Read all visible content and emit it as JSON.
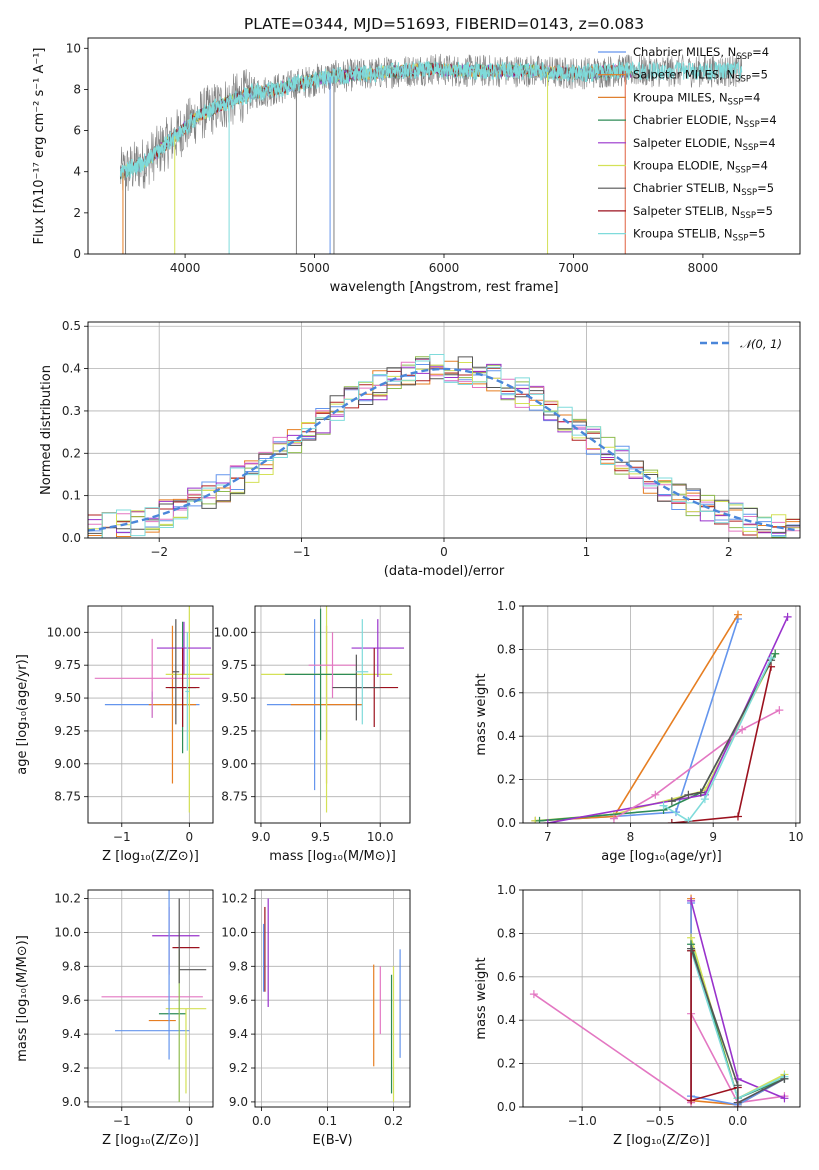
{
  "colors": {
    "c0": "#6495ed",
    "c1": "#e67e22",
    "c2": "#8fbc4f",
    "c3": "#b22222",
    "c4": "#9932cc",
    "c5": "#8c564b",
    "c6": "#e377c2",
    "c7": "#7f7f7f",
    "c8": "#bcbd22",
    "c9": "#17becf",
    "c10": "#2ca02c",
    "c11": "#d4e157",
    "c12": "#555555",
    "c13": "#9b111e",
    "c14": "#7fdbdb",
    "c15": "#ff7f50"
  },
  "chart_data": [
    {
      "type": "line",
      "title": "PLATE=0344, MJD=51693, FIBERID=0143, z=0.083",
      "xlabel": "wavelength [Angstrom, rest frame]",
      "ylabel": "Flux [fλ10⁻¹⁷ erg cm⁻² s⁻¹ A⁻¹]",
      "xlim": [
        3250,
        8750
      ],
      "ylim": [
        0,
        10.5
      ],
      "xticks": [
        4000,
        5000,
        6000,
        7000,
        8000
      ],
      "yticks": [
        0,
        2,
        4,
        6,
        8,
        10
      ],
      "legend_position": "right",
      "series": [
        {
          "name": "Chabrier MILES, N_SSP=4",
          "color": "#6495ed"
        },
        {
          "name": "Salpeter MILES, N_SSP=5",
          "color": "#e67e22"
        },
        {
          "name": "Kroupa MILES, N_SSP=4",
          "color": "#e08030"
        },
        {
          "name": "Chabrier ELODIE, N_SSP=4",
          "color": "#2e8b57"
        },
        {
          "name": "Salpeter ELODIE, N_SSP=4",
          "color": "#9932cc"
        },
        {
          "name": "Kroupa ELODIE, N_SSP=4",
          "color": "#d4e157"
        },
        {
          "name": "Chabrier STELIB, N_SSP=5",
          "color": "#555555"
        },
        {
          "name": "Salpeter STELIB, N_SSP=5",
          "color": "#9b111e"
        },
        {
          "name": "Kroupa STELIB, N_SSP=5",
          "color": "#7fdbdb"
        }
      ],
      "legend_labels": [
        {
          "pre": "Chabrier MILES, N",
          "sub": "SSP",
          "post": "=4"
        },
        {
          "pre": "Salpeter MILES, N",
          "sub": "SSP",
          "post": "=5"
        },
        {
          "pre": "Kroupa MILES, N",
          "sub": "SSP",
          "post": "=4"
        },
        {
          "pre": "Chabrier ELODIE, N",
          "sub": "SSP",
          "post": "=4"
        },
        {
          "pre": "Salpeter ELODIE, N",
          "sub": "SSP",
          "post": "=4"
        },
        {
          "pre": "Kroupa ELODIE, N",
          "sub": "SSP",
          "post": "=4"
        },
        {
          "pre": "Chabrier STELIB, N",
          "sub": "SSP",
          "post": "=5"
        },
        {
          "pre": "Salpeter STELIB, N",
          "sub": "SSP",
          "post": "=5"
        },
        {
          "pre": "Kroupa STELIB, N",
          "sub": "SSP",
          "post": "=5"
        }
      ],
      "continuum": {
        "x": [
          3500,
          3700,
          3900,
          4100,
          4300,
          4500,
          4700,
          4900,
          5100,
          5300,
          5500,
          5700,
          5900,
          6100,
          6300,
          6500,
          6700,
          6900,
          7100,
          7300,
          7500
        ],
        "y": [
          3.9,
          4.5,
          5.6,
          6.7,
          7.3,
          7.8,
          8.0,
          8.3,
          8.6,
          8.7,
          8.8,
          8.9,
          9.0,
          8.9,
          8.9,
          8.9,
          8.9,
          8.8,
          8.8,
          8.9,
          8.9
        ]
      },
      "data_xrange": [
        3500,
        8300
      ],
      "vertical_drops": [
        3520,
        3540,
        3920,
        4340,
        4860,
        5120,
        5150,
        6800,
        7400
      ]
    },
    {
      "type": "line",
      "xlabel": "(data-model)/error",
      "ylabel": "Normed distribution",
      "xlim": [
        -2.5,
        2.5
      ],
      "ylim": [
        0,
        0.51
      ],
      "xticks": [
        -2,
        -1,
        0,
        1,
        2
      ],
      "yticks": [
        0.0,
        0.1,
        0.2,
        0.3,
        0.4,
        0.5
      ],
      "legend_label": "𝒩(0, 1)",
      "legend_position": "top-right",
      "grid": true
    },
    {
      "type": "scatter",
      "xlabel": "Z [log₁₀(Z/Z⊙)]",
      "ylabel": "age  [log₁₀(age/yr)]",
      "xlim": [
        -1.5,
        0.35
      ],
      "ylim": [
        8.55,
        10.2
      ],
      "xticks": [
        -1,
        0
      ],
      "yticks": [
        8.75,
        9.0,
        9.25,
        9.5,
        9.75,
        10.0
      ],
      "points": [
        {
          "x": -0.55,
          "y": 9.45,
          "xerr": 0.7,
          "yerr": 0.1,
          "color": "#6495ed"
        },
        {
          "x": -0.25,
          "y": 9.45,
          "xerr": 0.35,
          "yerr": 0.6,
          "color": "#e67e22"
        },
        {
          "x": 0.0,
          "y": 9.68,
          "xerr": 0.35,
          "yerr": 1.05,
          "color": "#d4e157"
        },
        {
          "x": -0.1,
          "y": 9.58,
          "xerr": 0.2,
          "yerr": 0.5,
          "color": "#2e8b57"
        },
        {
          "x": -0.08,
          "y": 9.88,
          "xerr": 0.4,
          "yerr": 0.2,
          "color": "#9932cc"
        },
        {
          "x": -0.55,
          "y": 9.65,
          "xerr": 0.85,
          "yerr": 0.3,
          "color": "#e377c2"
        },
        {
          "x": -0.1,
          "y": 9.58,
          "xerr": 0.25,
          "yerr": 0.3,
          "color": "#9b111e"
        },
        {
          "x": -0.2,
          "y": 9.7,
          "xerr": 0.05,
          "yerr": 0.4,
          "color": "#555555"
        },
        {
          "x": -0.03,
          "y": 9.55,
          "xerr": 0.03,
          "yerr": 0.45,
          "color": "#7fdbdb"
        }
      ]
    },
    {
      "type": "scatter",
      "xlabel": "mass [log₁₀(M/M⊙)]",
      "xlim": [
        8.95,
        10.25
      ],
      "ylim": [
        8.55,
        10.2
      ],
      "xticks": [
        9.0,
        9.5,
        10.0
      ],
      "yticks": [
        8.75,
        9.0,
        9.25,
        9.5,
        9.75,
        10.0
      ],
      "points": [
        {
          "x": 9.45,
          "y": 9.45,
          "xerr": 0.4,
          "yerr": 0.65,
          "color": "#6495ed"
        },
        {
          "x": 9.55,
          "y": 9.45,
          "xerr": 0.3,
          "yerr": 0.6,
          "color": "#e67e22"
        },
        {
          "x": 9.55,
          "y": 9.68,
          "xerr": 0.55,
          "yerr": 1.05,
          "color": "#d4e157"
        },
        {
          "x": 9.5,
          "y": 9.68,
          "xerr": 0.3,
          "yerr": 0.5,
          "color": "#2e8b57"
        },
        {
          "x": 9.98,
          "y": 9.88,
          "xerr": 0.22,
          "yerr": 0.22,
          "color": "#9932cc"
        },
        {
          "x": 9.6,
          "y": 9.75,
          "xerr": 0.2,
          "yerr": 0.25,
          "color": "#e377c2"
        },
        {
          "x": 9.95,
          "y": 9.58,
          "xerr": 0.2,
          "yerr": 0.3,
          "color": "#9b111e"
        },
        {
          "x": 9.8,
          "y": 9.58,
          "xerr": 0.2,
          "yerr": 0.25,
          "color": "#555555"
        },
        {
          "x": 9.85,
          "y": 9.7,
          "xerr": 0.05,
          "yerr": 0.4,
          "color": "#7fdbdb"
        }
      ]
    },
    {
      "type": "line",
      "xlabel": "age  [log₁₀(age/yr)]",
      "ylabel": "mass weight",
      "xlim": [
        6.7,
        10.05
      ],
      "ylim": [
        0,
        1.0
      ],
      "xticks": [
        7,
        8,
        9,
        10
      ],
      "yticks": [
        0.0,
        0.2,
        0.4,
        0.6,
        0.8,
        1.0
      ],
      "grid": true,
      "series": [
        {
          "color": "#6495ed",
          "x": [
            6.85,
            7.8,
            8.55,
            9.3
          ],
          "y": [
            0.01,
            0.03,
            0.05,
            0.94
          ]
        },
        {
          "color": "#e67e22",
          "x": [
            6.85,
            7.8,
            9.3
          ],
          "y": [
            0.01,
            0.03,
            0.96
          ]
        },
        {
          "color": "#d4e157",
          "x": [
            6.85,
            7.8,
            8.9,
            9.75
          ],
          "y": [
            0.01,
            0.04,
            0.15,
            0.78
          ]
        },
        {
          "color": "#2e8b57",
          "x": [
            6.9,
            8.4,
            8.85,
            9.75
          ],
          "y": [
            0.01,
            0.06,
            0.14,
            0.78
          ]
        },
        {
          "color": "#9932cc",
          "x": [
            7.0,
            8.9,
            9.9
          ],
          "y": [
            0.0,
            0.13,
            0.95
          ]
        },
        {
          "color": "#e377c2",
          "x": [
            7.8,
            8.3,
            9.35,
            9.8
          ],
          "y": [
            0.02,
            0.13,
            0.43,
            0.52
          ]
        },
        {
          "color": "#9b111e",
          "x": [
            8.5,
            9.3,
            9.7
          ],
          "y": [
            0.0,
            0.03,
            0.72
          ]
        },
        {
          "color": "#555555",
          "x": [
            8.5,
            8.7,
            8.85,
            9.7
          ],
          "y": [
            0.1,
            0.13,
            0.14,
            0.75
          ]
        },
        {
          "color": "#7fdbdb",
          "x": [
            8.4,
            8.7,
            8.9,
            9.7
          ],
          "y": [
            0.08,
            0.01,
            0.11,
            0.76
          ]
        }
      ]
    },
    {
      "type": "scatter",
      "xlabel": "Z [log₁₀(Z/Z⊙)]",
      "ylabel": "mass [log₁₀(M/M⊙)]",
      "xlim": [
        -1.5,
        0.35
      ],
      "ylim": [
        8.97,
        10.25
      ],
      "xticks": [
        -1,
        0
      ],
      "yticks": [
        9.0,
        9.2,
        9.4,
        9.6,
        9.8,
        10.0,
        10.2
      ],
      "points": [
        {
          "x": -0.55,
          "y": 9.42,
          "xerr": 0.55,
          "yerr": 0.0,
          "color": "#6495ed"
        },
        {
          "x": -0.4,
          "y": 9.48,
          "xerr": 0.2,
          "yerr": 0.0,
          "color": "#e67e22"
        },
        {
          "x": -0.05,
          "y": 9.55,
          "xerr": 0.3,
          "yerr": 0.0,
          "color": "#d4e157"
        },
        {
          "x": -0.25,
          "y": 9.52,
          "xerr": 0.2,
          "yerr": 0.0,
          "color": "#2e8b57"
        },
        {
          "x": -0.2,
          "y": 9.98,
          "xerr": 0.35,
          "yerr": 0.0,
          "color": "#9932cc"
        },
        {
          "x": -0.55,
          "y": 9.62,
          "xerr": 0.75,
          "yerr": 0.0,
          "color": "#e377c2"
        },
        {
          "x": -0.05,
          "y": 9.91,
          "xerr": 0.2,
          "yerr": 0.0,
          "color": "#9b111e"
        },
        {
          "x": 0.05,
          "y": 9.78,
          "xerr": 0.2,
          "yerr": 0.0,
          "color": "#555555"
        },
        {
          "x": -0.3,
          "y": 9.95,
          "xerr": 0.0,
          "yerr": 0.2,
          "color": "#e377c2"
        },
        {
          "x": -0.3,
          "y": 9.85,
          "xerr": 0.0,
          "yerr": 0.6,
          "color": "#6495ed"
        },
        {
          "x": -0.15,
          "y": 9.45,
          "xerr": 0.0,
          "yerr": 0.45,
          "color": "#8fbc4f"
        },
        {
          "x": -0.05,
          "y": 9.3,
          "xerr": 0.0,
          "yerr": 0.25,
          "color": "#d4e157"
        },
        {
          "x": -0.15,
          "y": 9.95,
          "xerr": 0.0,
          "yerr": 0.25,
          "color": "#555555"
        }
      ]
    },
    {
      "type": "scatter",
      "xlabel": "E(B-V)",
      "xlim": [
        -0.01,
        0.225
      ],
      "ylim": [
        8.97,
        10.25
      ],
      "xticks": [
        0.0,
        0.1,
        0.2
      ],
      "yticks": [
        9.0,
        9.2,
        9.4,
        9.6,
        9.8,
        10.0,
        10.2
      ],
      "points": [
        {
          "x": 0.005,
          "y": 9.9,
          "xerr": 0,
          "yerr": 0.25,
          "color": "#9b111e"
        },
        {
          "x": 0.01,
          "y": 9.88,
          "xerr": 0,
          "yerr": 0.32,
          "color": "#9932cc"
        },
        {
          "x": 0.003,
          "y": 9.85,
          "xerr": 0,
          "yerr": 0.2,
          "color": "#6495ed"
        },
        {
          "x": 0.17,
          "y": 9.51,
          "xerr": 0,
          "yerr": 0.3,
          "color": "#e67e22"
        },
        {
          "x": 0.18,
          "y": 9.6,
          "xerr": 0,
          "yerr": 0.2,
          "color": "#e377c2"
        },
        {
          "x": 0.197,
          "y": 9.4,
          "xerr": 0,
          "yerr": 0.35,
          "color": "#2e8b57"
        },
        {
          "x": 0.2,
          "y": 9.4,
          "xerr": 0,
          "yerr": 0.4,
          "color": "#d4e157"
        },
        {
          "x": 0.21,
          "y": 9.58,
          "xerr": 0,
          "yerr": 0.32,
          "color": "#6495ed"
        }
      ]
    },
    {
      "type": "line",
      "xlabel": "Z [log₁₀(Z/Z⊙)]",
      "ylabel": "mass weight",
      "xlim": [
        -1.38,
        0.4
      ],
      "ylim": [
        0,
        1.0
      ],
      "xticks": [
        -1.0,
        -0.5,
        0.0
      ],
      "yticks": [
        0.0,
        0.2,
        0.4,
        0.6,
        0.8,
        1.0
      ],
      "grid": true,
      "series": [
        {
          "color": "#e377c2",
          "x": [
            -1.31,
            -0.3,
            -0.3,
            0.0,
            0.3
          ],
          "y": [
            0.52,
            0.02,
            0.43,
            0.02,
            0.05
          ]
        },
        {
          "color": "#e67e22",
          "x": [
            -0.3,
            -0.3,
            0.0,
            0.3
          ],
          "y": [
            0.96,
            0.03,
            0.01,
            0.13
          ]
        },
        {
          "color": "#6495ed",
          "x": [
            -0.3,
            -0.3,
            0.0,
            0.3
          ],
          "y": [
            0.94,
            0.05,
            0.01,
            0.13
          ]
        },
        {
          "color": "#9932cc",
          "x": [
            -0.3,
            0.0,
            0.3
          ],
          "y": [
            0.95,
            0.13,
            0.04
          ]
        },
        {
          "color": "#d4e157",
          "x": [
            -0.3,
            0.0,
            0.3
          ],
          "y": [
            0.78,
            0.04,
            0.15
          ]
        },
        {
          "color": "#2e8b57",
          "x": [
            -0.3,
            0.0,
            0.3
          ],
          "y": [
            0.75,
            0.04,
            0.13
          ]
        },
        {
          "color": "#7fdbdb",
          "x": [
            -0.3,
            0.0,
            0.3
          ],
          "y": [
            0.72,
            0.04,
            0.14
          ]
        },
        {
          "color": "#9b111e",
          "x": [
            -0.3,
            -0.3,
            0.0,
            0.0
          ],
          "y": [
            0.72,
            0.03,
            0.09,
            0.0
          ]
        },
        {
          "color": "#555555",
          "x": [
            -0.3,
            0.0,
            0.0,
            0.3
          ],
          "y": [
            0.73,
            0.1,
            0.02,
            0.13
          ]
        }
      ]
    }
  ]
}
